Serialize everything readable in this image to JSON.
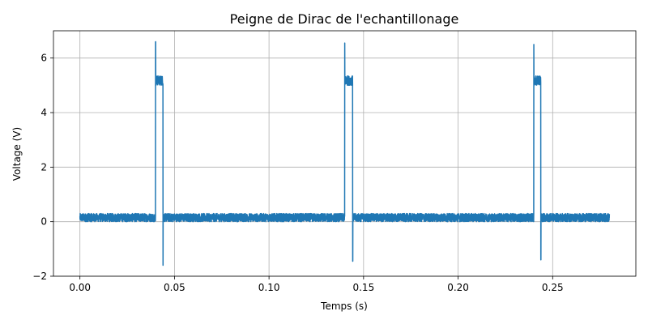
{
  "chart_data": {
    "type": "line",
    "title": "Peigne de Dirac de l'echantillonage",
    "xlabel": "Temps (s)",
    "ylabel": "Voltage (V)",
    "xlim": [
      -0.014,
      0.294
    ],
    "ylim": [
      -2.0,
      7.0
    ],
    "xticks": [
      0.0,
      0.05,
      0.1,
      0.15,
      0.2,
      0.25
    ],
    "xtick_labels": [
      "0.00",
      "0.05",
      "0.10",
      "0.15",
      "0.20",
      "0.25"
    ],
    "yticks": [
      -2,
      0,
      2,
      4,
      6
    ],
    "ytick_labels": [
      "−2",
      "0",
      "2",
      "4",
      "6"
    ],
    "grid": true,
    "series": [
      {
        "color": "#1f77b4",
        "baseline_band": [
          0.0,
          0.3
        ],
        "pulse_level_band": [
          5.0,
          5.35
        ],
        "pulses": [
          {
            "start": 0.04,
            "end": 0.044,
            "peak": 6.6,
            "undershoot": -1.6
          },
          {
            "start": 0.14,
            "end": 0.1443,
            "peak": 6.55,
            "undershoot": -1.45
          },
          {
            "start": 0.24,
            "end": 0.2438,
            "peak": 6.5,
            "undershoot": -1.4
          }
        ],
        "x_range": [
          0.0,
          0.28
        ]
      }
    ]
  }
}
